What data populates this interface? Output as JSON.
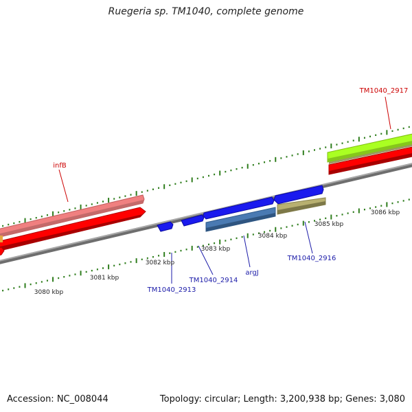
{
  "title": "Ruegeria sp. TM1040, complete genome",
  "footer": {
    "accession": "Accession: NC_008044",
    "summary": "Topology: circular; Length: 3,200,938 bp; Genes: 3,080"
  },
  "colors": {
    "backbone": "#8a8a8a",
    "tick_major": "#2e7d1c",
    "tick_minor": "#2e7d1c",
    "label_red": "#cc0000",
    "label_blue": "#1a1aa8"
  },
  "scale": {
    "tick_labels": [
      "3080 kbp",
      "3081 kbp",
      "3082 kbp",
      "3083 kbp",
      "3084 kbp",
      "3085 kbp",
      "3086 kbp"
    ]
  },
  "genes": [
    {
      "label": "infB"
    },
    {
      "label": "TM1040_2917"
    },
    {
      "label": "TM1040_2913"
    },
    {
      "label": "TM1040_2914"
    },
    {
      "label": "argJ"
    },
    {
      "label": "TM1040_2916"
    }
  ]
}
